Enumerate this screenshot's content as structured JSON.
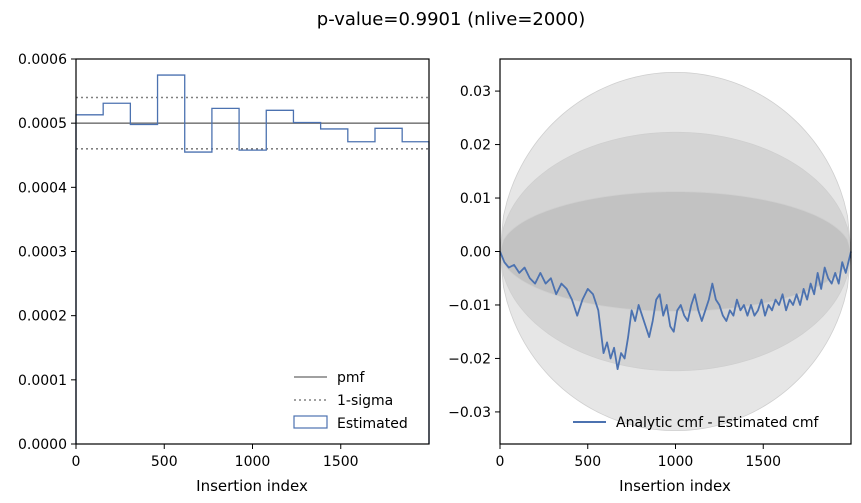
{
  "title": "p-value=0.9901 (nlive=2000)",
  "chart_data": [
    {
      "type": "step",
      "xlabel": "Insertion index",
      "ylabel": "",
      "xlim": [
        0,
        2000
      ],
      "ylim": [
        0,
        0.0006
      ],
      "x_ticks": [
        0,
        500,
        1000,
        1500
      ],
      "x_tick_labels": [
        "0",
        "500",
        "1000",
        "1500"
      ],
      "y_ticks": [
        0,
        0.0001,
        0.0002,
        0.0003,
        0.0004,
        0.0005,
        0.0006
      ],
      "y_tick_labels": [
        "0.0000",
        "0.0001",
        "0.0002",
        "0.0003",
        "0.0004",
        "0.0005",
        "0.0006"
      ],
      "legend_position": "lower-right",
      "pmf": {
        "name": "pmf",
        "value": 0.0005,
        "color": "#808080"
      },
      "sigma": {
        "name": "1-sigma",
        "values": [
          0.00046,
          0.00054
        ],
        "color": "#808080"
      },
      "estimated": {
        "name": "Estimated",
        "color": "#4c72b0",
        "bin_edges": [
          0,
          154,
          308,
          462,
          616,
          770,
          924,
          1078,
          1232,
          1386,
          1540,
          1694,
          1848,
          2000
        ],
        "values": [
          0.000513,
          0.000531,
          0.000498,
          0.000575,
          0.000455,
          0.000523,
          0.000458,
          0.00052,
          0.000501,
          0.000491,
          0.000471,
          0.000492,
          0.000471
        ]
      }
    },
    {
      "type": "line",
      "xlabel": "Insertion index",
      "ylabel": "",
      "xlim": [
        0,
        2000
      ],
      "ylim": [
        -0.036,
        0.036
      ],
      "x_ticks": [
        0,
        500,
        1000,
        1500
      ],
      "x_tick_labels": [
        "0",
        "500",
        "1000",
        "1500"
      ],
      "y_ticks": [
        -0.03,
        -0.02,
        -0.01,
        0,
        0.01,
        0.02,
        0.03
      ],
      "y_tick_labels": [
        "−0.03",
        "−0.02",
        "−0.01",
        "0.00",
        "0.01",
        "0.02",
        "0.03"
      ],
      "legend_position": "lower-right",
      "sigma_bands": [
        {
          "sigma": 3,
          "half_width_at_center": 0.0335,
          "color": "#e6e6e6"
        },
        {
          "sigma": 2,
          "half_width_at_center": 0.0223,
          "color": "#d4d4d4"
        },
        {
          "sigma": 1,
          "half_width_at_center": 0.0112,
          "color": "#c2c2c2"
        }
      ],
      "series": [
        {
          "name": "Analytic cmf - Estimated cmf",
          "color": "#4c72b0",
          "x": [
            0,
            25,
            50,
            80,
            110,
            140,
            170,
            200,
            230,
            260,
            290,
            320,
            350,
            380,
            410,
            440,
            470,
            500,
            530,
            560,
            590,
            610,
            630,
            650,
            670,
            690,
            710,
            730,
            750,
            770,
            790,
            810,
            830,
            850,
            870,
            890,
            910,
            930,
            950,
            970,
            990,
            1010,
            1030,
            1050,
            1070,
            1090,
            1110,
            1130,
            1150,
            1170,
            1190,
            1210,
            1230,
            1250,
            1270,
            1290,
            1310,
            1330,
            1350,
            1370,
            1390,
            1410,
            1430,
            1450,
            1470,
            1490,
            1510,
            1530,
            1550,
            1570,
            1590,
            1610,
            1630,
            1650,
            1670,
            1690,
            1710,
            1730,
            1750,
            1770,
            1790,
            1810,
            1830,
            1850,
            1870,
            1890,
            1910,
            1930,
            1950,
            1970,
            2000
          ],
          "y": [
            0.0,
            -0.002,
            -0.003,
            -0.0025,
            -0.004,
            -0.003,
            -0.005,
            -0.006,
            -0.004,
            -0.006,
            -0.005,
            -0.008,
            -0.006,
            -0.007,
            -0.009,
            -0.012,
            -0.009,
            -0.007,
            -0.008,
            -0.011,
            -0.019,
            -0.017,
            -0.02,
            -0.018,
            -0.022,
            -0.019,
            -0.02,
            -0.016,
            -0.011,
            -0.013,
            -0.01,
            -0.012,
            -0.014,
            -0.016,
            -0.013,
            -0.009,
            -0.008,
            -0.012,
            -0.01,
            -0.014,
            -0.015,
            -0.011,
            -0.01,
            -0.012,
            -0.013,
            -0.01,
            -0.008,
            -0.011,
            -0.013,
            -0.011,
            -0.009,
            -0.006,
            -0.009,
            -0.01,
            -0.012,
            -0.013,
            -0.011,
            -0.012,
            -0.009,
            -0.011,
            -0.01,
            -0.012,
            -0.01,
            -0.012,
            -0.011,
            -0.009,
            -0.012,
            -0.01,
            -0.011,
            -0.009,
            -0.01,
            -0.008,
            -0.011,
            -0.009,
            -0.01,
            -0.008,
            -0.01,
            -0.007,
            -0.009,
            -0.006,
            -0.008,
            -0.004,
            -0.007,
            -0.003,
            -0.005,
            -0.006,
            -0.004,
            -0.006,
            -0.002,
            -0.004,
            0.0
          ]
        }
      ]
    }
  ]
}
